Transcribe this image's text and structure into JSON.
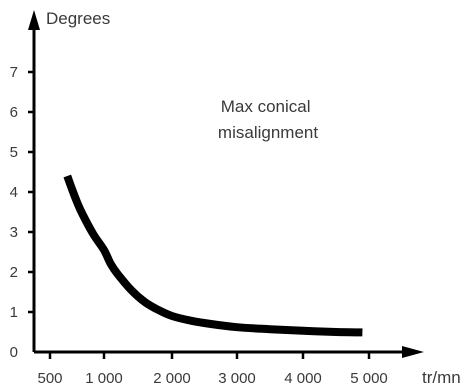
{
  "chart_data": {
    "type": "line",
    "title": "",
    "annotation": [
      "Max conical",
      "misalignment"
    ],
    "xlabel": "tr/mn",
    "ylabel": "Degrees",
    "x_ticks": [
      {
        "value": 500,
        "label": "500"
      },
      {
        "value": 1000,
        "label": "1 000"
      },
      {
        "value": 2000,
        "label": "2 000"
      },
      {
        "value": 3000,
        "label": "3 000"
      },
      {
        "value": 4000,
        "label": "4 000"
      },
      {
        "value": 5000,
        "label": "5 000"
      }
    ],
    "y_ticks": [
      0,
      1,
      2,
      3,
      4,
      5,
      6,
      7
    ],
    "ylim": [
      0,
      7
    ],
    "grid": false,
    "series": [
      {
        "color": "#000000",
        "x": [
          660,
          700,
          750,
          800,
          900,
          1000,
          1100,
          1200,
          1400,
          1600,
          1800,
          2000,
          2300,
          2600,
          3000,
          3500,
          4000,
          4500,
          4900
        ],
        "y": [
          4.4,
          4.1,
          3.75,
          3.45,
          2.95,
          2.55,
          2.2,
          1.95,
          1.55,
          1.25,
          1.05,
          0.9,
          0.78,
          0.7,
          0.62,
          0.57,
          0.53,
          0.5,
          0.49
        ]
      }
    ]
  }
}
